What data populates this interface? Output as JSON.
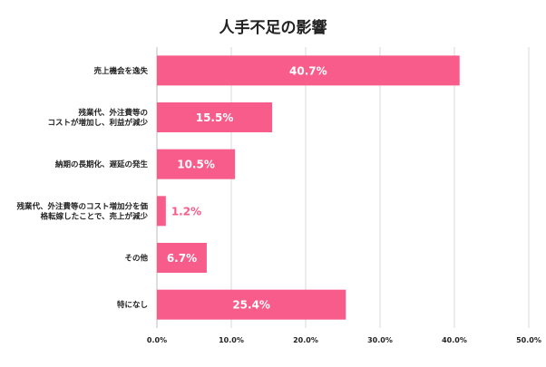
{
  "chart_data": {
    "type": "bar",
    "orientation": "horizontal",
    "title": "人手不足の影響",
    "xlabel": "",
    "ylabel": "",
    "categories": [
      [
        "売上機会を逸失"
      ],
      [
        "残業代、外注費等の",
        "コストが増加し、利益が減少"
      ],
      [
        "納期の長期化、遅延の発生"
      ],
      [
        "残業代、外注費等のコスト増加分を価",
        "格転嫁したことで、売上が減少"
      ],
      [
        "その他"
      ],
      [
        "特になし"
      ]
    ],
    "values": [
      40.7,
      15.5,
      10.5,
      1.2,
      6.7,
      25.4
    ],
    "value_labels": [
      "40.7%",
      "15.5%",
      "10.5%",
      "1.2%",
      "6.7%",
      "25.4%"
    ],
    "xlim": [
      0,
      50
    ],
    "xticks": [
      "0.0%",
      "10.0%",
      "20.0%",
      "30.0%",
      "40.0%",
      "50.0%"
    ],
    "grid": true,
    "colors": {
      "bar": "#f75c8a",
      "label_inside": "#ffffff",
      "label_outside": "#f75c8a"
    }
  }
}
